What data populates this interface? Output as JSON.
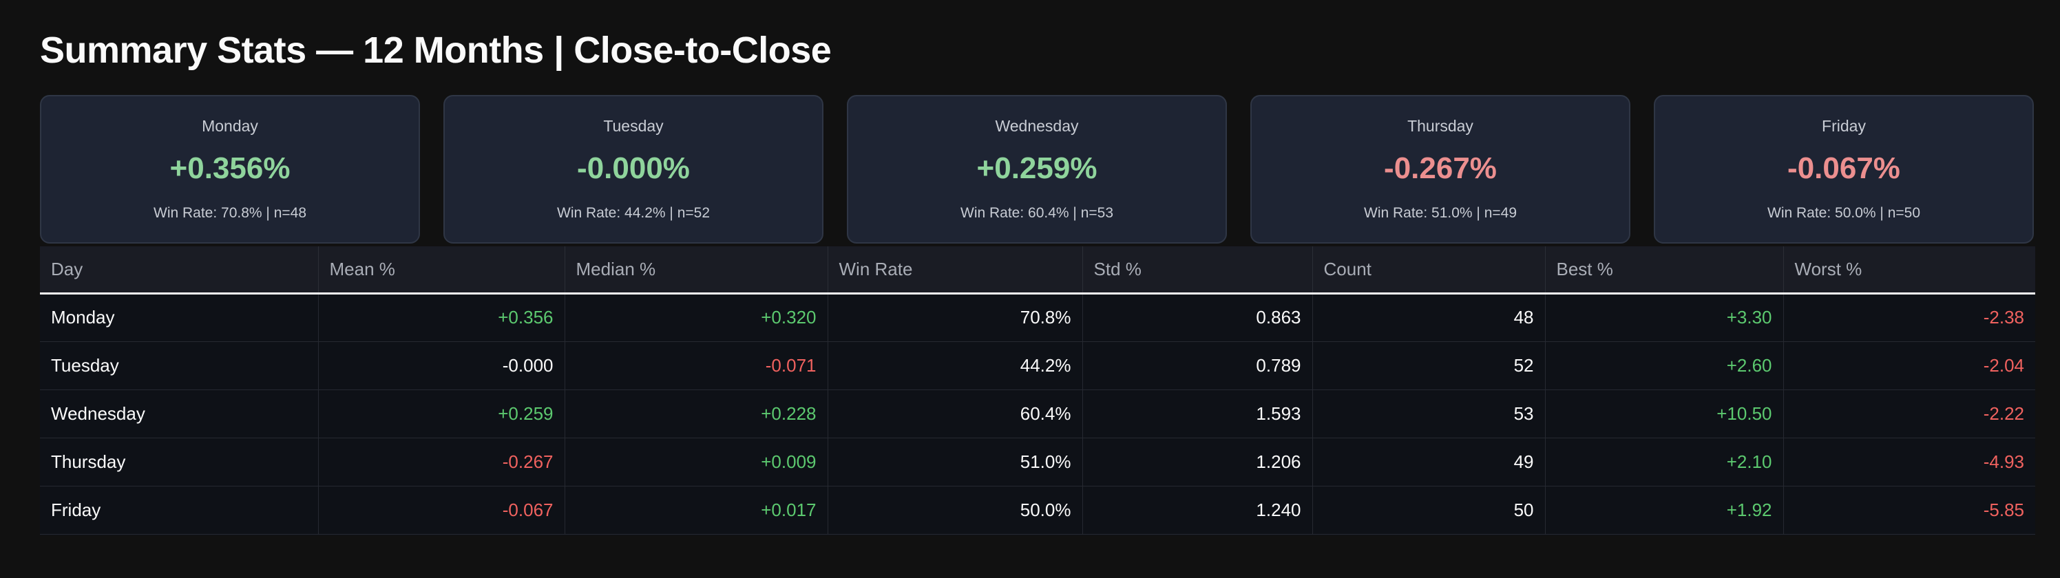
{
  "title": "Summary Stats — 12 Months | Close-to-Close",
  "colors": {
    "background": "#111111",
    "card_bg": "#1e2433",
    "positive_card": "#8fd49c",
    "negative_card": "#ec8f8f",
    "positive_cell": "#5cc96f",
    "negative_cell": "#f0625f"
  },
  "cards": [
    {
      "day": "Monday",
      "value": "+0.356%",
      "sub": "Win Rate: 70.8% | n=48",
      "tone": "pos"
    },
    {
      "day": "Tuesday",
      "value": "-0.000%",
      "sub": "Win Rate: 44.2% | n=52",
      "tone": "pos"
    },
    {
      "day": "Wednesday",
      "value": "+0.259%",
      "sub": "Win Rate: 60.4% | n=53",
      "tone": "pos"
    },
    {
      "day": "Thursday",
      "value": "-0.267%",
      "sub": "Win Rate: 51.0% | n=49",
      "tone": "neg"
    },
    {
      "day": "Friday",
      "value": "-0.067%",
      "sub": "Win Rate: 50.0% | n=50",
      "tone": "neg"
    }
  ],
  "table": {
    "columns": [
      "Day",
      "Mean %",
      "Median %",
      "Win Rate",
      "Std %",
      "Count",
      "Best %",
      "Worst %"
    ],
    "rows": [
      [
        {
          "v": "Monday",
          "t": "day"
        },
        {
          "v": "+0.356",
          "t": "pos"
        },
        {
          "v": "+0.320",
          "t": "pos"
        },
        {
          "v": "70.8%",
          "t": "neu"
        },
        {
          "v": "0.863",
          "t": "neu"
        },
        {
          "v": "48",
          "t": "neu"
        },
        {
          "v": "+3.30",
          "t": "pos"
        },
        {
          "v": "-2.38",
          "t": "neg"
        }
      ],
      [
        {
          "v": "Tuesday",
          "t": "day"
        },
        {
          "v": "-0.000",
          "t": "neu"
        },
        {
          "v": "-0.071",
          "t": "neg"
        },
        {
          "v": "44.2%",
          "t": "neu"
        },
        {
          "v": "0.789",
          "t": "neu"
        },
        {
          "v": "52",
          "t": "neu"
        },
        {
          "v": "+2.60",
          "t": "pos"
        },
        {
          "v": "-2.04",
          "t": "neg"
        }
      ],
      [
        {
          "v": "Wednesday",
          "t": "day"
        },
        {
          "v": "+0.259",
          "t": "pos"
        },
        {
          "v": "+0.228",
          "t": "pos"
        },
        {
          "v": "60.4%",
          "t": "neu"
        },
        {
          "v": "1.593",
          "t": "neu"
        },
        {
          "v": "53",
          "t": "neu"
        },
        {
          "v": "+10.50",
          "t": "pos"
        },
        {
          "v": "-2.22",
          "t": "neg"
        }
      ],
      [
        {
          "v": "Thursday",
          "t": "day"
        },
        {
          "v": "-0.267",
          "t": "neg"
        },
        {
          "v": "+0.009",
          "t": "pos"
        },
        {
          "v": "51.0%",
          "t": "neu"
        },
        {
          "v": "1.206",
          "t": "neu"
        },
        {
          "v": "49",
          "t": "neu"
        },
        {
          "v": "+2.10",
          "t": "pos"
        },
        {
          "v": "-4.93",
          "t": "neg"
        }
      ],
      [
        {
          "v": "Friday",
          "t": "day"
        },
        {
          "v": "-0.067",
          "t": "neg"
        },
        {
          "v": "+0.017",
          "t": "pos"
        },
        {
          "v": "50.0%",
          "t": "neu"
        },
        {
          "v": "1.240",
          "t": "neu"
        },
        {
          "v": "50",
          "t": "neu"
        },
        {
          "v": "+1.92",
          "t": "pos"
        },
        {
          "v": "-5.85",
          "t": "neg"
        }
      ]
    ]
  }
}
